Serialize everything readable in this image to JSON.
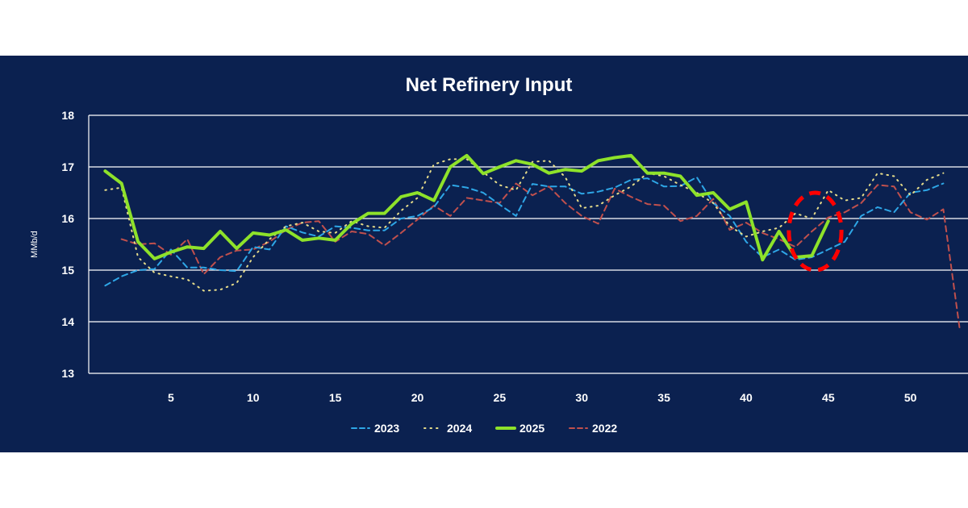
{
  "chart_data": {
    "type": "line",
    "title": "Net Refinery Input",
    "ylabel": "MMb/d",
    "xlabel": "",
    "xlim": [
      0,
      53.5
    ],
    "ylim": [
      13,
      18
    ],
    "x_ticks": [
      5,
      10,
      15,
      20,
      25,
      30,
      35,
      40,
      45,
      50
    ],
    "y_ticks": [
      13,
      14,
      15,
      16,
      17,
      18
    ],
    "grid": "horizontal",
    "legend_position": "bottom",
    "series": [
      {
        "name": "2023",
        "color": "#2ea6e6",
        "style": "dashed",
        "points": [
          [
            1,
            14.7
          ],
          [
            2,
            14.88
          ],
          [
            3,
            15.0
          ],
          [
            4,
            15.02
          ],
          [
            5,
            15.4
          ],
          [
            6,
            15.05
          ],
          [
            7,
            15.05
          ],
          [
            8,
            15.0
          ],
          [
            9,
            14.98
          ],
          [
            10,
            15.45
          ],
          [
            11,
            15.4
          ],
          [
            12,
            15.85
          ],
          [
            13,
            15.73
          ],
          [
            14,
            15.65
          ],
          [
            15,
            15.85
          ],
          [
            16,
            15.82
          ],
          [
            17,
            15.77
          ],
          [
            18,
            15.77
          ],
          [
            19,
            16.0
          ],
          [
            20,
            16.05
          ],
          [
            21,
            16.22
          ],
          [
            22,
            16.65
          ],
          [
            23,
            16.6
          ],
          [
            24,
            16.5
          ],
          [
            25,
            16.27
          ],
          [
            26,
            16.05
          ],
          [
            27,
            16.67
          ],
          [
            28,
            16.62
          ],
          [
            29,
            16.62
          ],
          [
            30,
            16.48
          ],
          [
            31,
            16.52
          ],
          [
            32,
            16.6
          ],
          [
            33,
            16.75
          ],
          [
            34,
            16.78
          ],
          [
            35,
            16.62
          ],
          [
            36,
            16.63
          ],
          [
            37,
            16.8
          ],
          [
            38,
            16.3
          ],
          [
            39,
            16.05
          ],
          [
            40,
            15.55
          ],
          [
            41,
            15.25
          ],
          [
            42,
            15.4
          ],
          [
            43,
            15.2
          ],
          [
            44,
            15.25
          ],
          [
            45,
            15.4
          ],
          [
            46,
            15.55
          ],
          [
            47,
            16.05
          ],
          [
            48,
            16.22
          ],
          [
            49,
            16.12
          ],
          [
            50,
            16.5
          ],
          [
            51,
            16.55
          ],
          [
            52,
            16.68
          ]
        ]
      },
      {
        "name": "2024",
        "color": "#e6dc8a",
        "style": "dotted",
        "points": [
          [
            1,
            16.55
          ],
          [
            2,
            16.6
          ],
          [
            3,
            15.25
          ],
          [
            4,
            14.95
          ],
          [
            5,
            14.88
          ],
          [
            6,
            14.82
          ],
          [
            7,
            14.6
          ],
          [
            8,
            14.62
          ],
          [
            9,
            14.75
          ],
          [
            10,
            15.25
          ],
          [
            11,
            15.6
          ],
          [
            12,
            15.85
          ],
          [
            13,
            15.92
          ],
          [
            14,
            15.75
          ],
          [
            15,
            15.72
          ],
          [
            16,
            15.95
          ],
          [
            17,
            15.85
          ],
          [
            18,
            15.82
          ],
          [
            19,
            16.15
          ],
          [
            20,
            16.4
          ],
          [
            21,
            17.05
          ],
          [
            22,
            17.15
          ],
          [
            23,
            17.15
          ],
          [
            24,
            16.9
          ],
          [
            25,
            16.65
          ],
          [
            26,
            16.55
          ],
          [
            27,
            17.1
          ],
          [
            28,
            17.12
          ],
          [
            29,
            16.8
          ],
          [
            30,
            16.2
          ],
          [
            31,
            16.25
          ],
          [
            32,
            16.45
          ],
          [
            33,
            16.62
          ],
          [
            34,
            16.88
          ],
          [
            35,
            16.82
          ],
          [
            36,
            16.65
          ],
          [
            37,
            16.5
          ],
          [
            38,
            16.3
          ],
          [
            39,
            15.85
          ],
          [
            40,
            15.65
          ],
          [
            41,
            15.75
          ],
          [
            42,
            15.82
          ],
          [
            43,
            16.1
          ],
          [
            44,
            16.0
          ],
          [
            45,
            16.55
          ],
          [
            46,
            16.35
          ],
          [
            47,
            16.4
          ],
          [
            48,
            16.88
          ],
          [
            49,
            16.82
          ],
          [
            50,
            16.45
          ],
          [
            51,
            16.75
          ],
          [
            52,
            16.88
          ]
        ]
      },
      {
        "name": "2025",
        "color": "#8ee22a",
        "style": "solid",
        "points": [
          [
            1,
            16.92
          ],
          [
            2,
            16.68
          ],
          [
            3,
            15.55
          ],
          [
            4,
            15.22
          ],
          [
            5,
            15.35
          ],
          [
            6,
            15.45
          ],
          [
            7,
            15.42
          ],
          [
            8,
            15.75
          ],
          [
            9,
            15.42
          ],
          [
            10,
            15.72
          ],
          [
            11,
            15.68
          ],
          [
            12,
            15.78
          ],
          [
            13,
            15.58
          ],
          [
            14,
            15.62
          ],
          [
            15,
            15.58
          ],
          [
            16,
            15.9
          ],
          [
            17,
            16.1
          ],
          [
            18,
            16.1
          ],
          [
            19,
            16.42
          ],
          [
            20,
            16.5
          ],
          [
            21,
            16.35
          ],
          [
            22,
            17.0
          ],
          [
            23,
            17.22
          ],
          [
            24,
            16.87
          ],
          [
            25,
            17.0
          ],
          [
            26,
            17.12
          ],
          [
            27,
            17.05
          ],
          [
            28,
            16.88
          ],
          [
            29,
            16.95
          ],
          [
            30,
            16.92
          ],
          [
            31,
            17.12
          ],
          [
            32,
            17.18
          ],
          [
            33,
            17.22
          ],
          [
            34,
            16.88
          ],
          [
            35,
            16.88
          ],
          [
            36,
            16.82
          ],
          [
            37,
            16.45
          ],
          [
            38,
            16.5
          ],
          [
            39,
            16.18
          ],
          [
            40,
            16.32
          ],
          [
            41,
            15.2
          ],
          [
            42,
            15.75
          ],
          [
            43,
            15.25
          ],
          [
            44,
            15.28
          ],
          [
            45,
            15.95
          ]
        ]
      },
      {
        "name": "2022",
        "color": "#c0504d",
        "style": "dashed",
        "points": [
          [
            2,
            15.6
          ],
          [
            3,
            15.5
          ],
          [
            4,
            15.52
          ],
          [
            5,
            15.3
          ],
          [
            6,
            15.6
          ],
          [
            7,
            14.92
          ],
          [
            8,
            15.25
          ],
          [
            9,
            15.38
          ],
          [
            10,
            15.4
          ],
          [
            11,
            15.55
          ],
          [
            12,
            15.78
          ],
          [
            13,
            15.92
          ],
          [
            14,
            15.95
          ],
          [
            15,
            15.55
          ],
          [
            16,
            15.75
          ],
          [
            17,
            15.7
          ],
          [
            18,
            15.48
          ],
          [
            19,
            15.72
          ],
          [
            20,
            15.98
          ],
          [
            21,
            16.25
          ],
          [
            22,
            16.05
          ],
          [
            23,
            16.4
          ],
          [
            24,
            16.35
          ],
          [
            25,
            16.3
          ],
          [
            26,
            16.68
          ],
          [
            27,
            16.45
          ],
          [
            28,
            16.62
          ],
          [
            29,
            16.3
          ],
          [
            30,
            16.05
          ],
          [
            31,
            15.9
          ],
          [
            32,
            16.58
          ],
          [
            33,
            16.42
          ],
          [
            34,
            16.28
          ],
          [
            35,
            16.25
          ],
          [
            36,
            15.95
          ],
          [
            37,
            16.05
          ],
          [
            38,
            16.38
          ],
          [
            39,
            15.78
          ],
          [
            40,
            15.92
          ],
          [
            41,
            15.72
          ],
          [
            42,
            15.6
          ],
          [
            43,
            15.45
          ],
          [
            44,
            15.75
          ],
          [
            45,
            16.02
          ],
          [
            46,
            16.12
          ],
          [
            47,
            16.3
          ],
          [
            48,
            16.65
          ],
          [
            49,
            16.62
          ],
          [
            50,
            16.12
          ],
          [
            51,
            15.98
          ],
          [
            52,
            16.18
          ],
          [
            53,
            13.85
          ]
        ]
      }
    ],
    "annotations": [
      {
        "type": "ellipse",
        "description": "red dashed circle highlight",
        "color": "#ff0000",
        "center": [
          44.2,
          15.75
        ],
        "radius_x": 1.6,
        "radius_y": 0.75
      }
    ]
  },
  "legend_order": [
    "2023",
    "2024",
    "2025",
    "2022"
  ]
}
